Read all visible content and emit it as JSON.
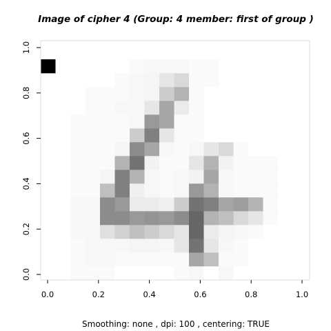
{
  "title": "Image of cipher  4 (Group:  4  member:  first of group )",
  "caption": "Smoothing: none , dpi: 100 , centering: TRUE",
  "chart_data": {
    "type": "heatmap",
    "title": "Image of cipher  4 (Group:  4  member:  first of group )",
    "xlim": [
      0,
      1
    ],
    "ylim": [
      0,
      1
    ],
    "x_ticks": [
      "0.0",
      "0.2",
      "0.4",
      "0.6",
      "0.8",
      "1.0"
    ],
    "y_ticks": [
      "0.0",
      "0.2",
      "0.4",
      "0.6",
      "0.8",
      "1.0"
    ],
    "rows": 16,
    "cols": 16,
    "palette": "grayscale (0 = white, 1 = black)",
    "values": [
      [
        0.0,
        0.0,
        0.02,
        0.02,
        0.02,
        0.0,
        0.0,
        0.0,
        0.0,
        0.02,
        0.03,
        0.0,
        0.03,
        0.0,
        0.0,
        0.0
      ],
      [
        0.0,
        0.0,
        0.02,
        0.03,
        0.03,
        0.02,
        0.02,
        0.02,
        0.02,
        0.02,
        0.35,
        0.25,
        0.02,
        0.02,
        0.0,
        0.0
      ],
      [
        0.0,
        0.0,
        0.02,
        0.03,
        0.03,
        0.03,
        0.04,
        0.04,
        0.03,
        0.1,
        0.55,
        0.1,
        0.03,
        0.02,
        0.0,
        0.0
      ],
      [
        0.0,
        0.0,
        0.03,
        0.03,
        0.12,
        0.18,
        0.25,
        0.2,
        0.15,
        0.1,
        0.6,
        0.08,
        0.04,
        0.03,
        0.02,
        0.0
      ],
      [
        0.0,
        0.0,
        0.03,
        0.03,
        0.45,
        0.45,
        0.4,
        0.42,
        0.4,
        0.45,
        0.6,
        0.3,
        0.25,
        0.15,
        0.1,
        0.02
      ],
      [
        0.0,
        0.0,
        0.03,
        0.03,
        0.45,
        0.4,
        0.08,
        0.08,
        0.06,
        0.2,
        0.55,
        0.5,
        0.35,
        0.38,
        0.3,
        0.02
      ],
      [
        0.0,
        0.0,
        0.02,
        0.02,
        0.25,
        0.5,
        0.06,
        0.03,
        0.02,
        0.03,
        0.4,
        0.3,
        0.03,
        0.02,
        0.02,
        0.02
      ],
      [
        0.0,
        0.0,
        0.02,
        0.02,
        0.04,
        0.5,
        0.3,
        0.03,
        0.02,
        0.03,
        0.05,
        0.35,
        0.03,
        0.02,
        0.02,
        0.02
      ],
      [
        0.0,
        0.0,
        0.02,
        0.02,
        0.02,
        0.3,
        0.55,
        0.05,
        0.02,
        0.02,
        0.1,
        0.3,
        0.05,
        0.02,
        0.02,
        0.02
      ],
      [
        0.0,
        0.0,
        0.02,
        0.02,
        0.02,
        0.04,
        0.45,
        0.35,
        0.03,
        0.02,
        0.03,
        0.1,
        0.15,
        0.02,
        0.0,
        0.0
      ],
      [
        0.0,
        0.0,
        0.02,
        0.02,
        0.02,
        0.02,
        0.2,
        0.5,
        0.1,
        0.02,
        0.02,
        0.0,
        0.0,
        0.0,
        0.0,
        0.0
      ],
      [
        0.0,
        0.0,
        0.02,
        0.02,
        0.02,
        0.02,
        0.03,
        0.4,
        0.35,
        0.02,
        0.02,
        0.0,
        0.0,
        0.0,
        0.0,
        0.0
      ],
      [
        0.0,
        0.0,
        0.0,
        0.02,
        0.02,
        0.03,
        0.03,
        0.1,
        0.35,
        0.08,
        0.02,
        0.0,
        0.0,
        0.0,
        0.0,
        0.0
      ],
      [
        0.0,
        0.0,
        0.0,
        0.02,
        0.02,
        0.02,
        0.03,
        0.04,
        0.2,
        0.3,
        0.02,
        0.0,
        0.0,
        0.0,
        0.0,
        0.0
      ],
      [
        0.0,
        0.0,
        0.0,
        0.0,
        0.0,
        0.02,
        0.03,
        0.04,
        0.1,
        0.15,
        0.02,
        0.02,
        0.0,
        0.0,
        0.0,
        0.0
      ],
      [
        1.0,
        0.0,
        0.0,
        0.0,
        0.0,
        0.0,
        0.02,
        0.03,
        0.03,
        0.03,
        0.02,
        0.02,
        0.0,
        0.0,
        0.0,
        0.0
      ]
    ]
  }
}
